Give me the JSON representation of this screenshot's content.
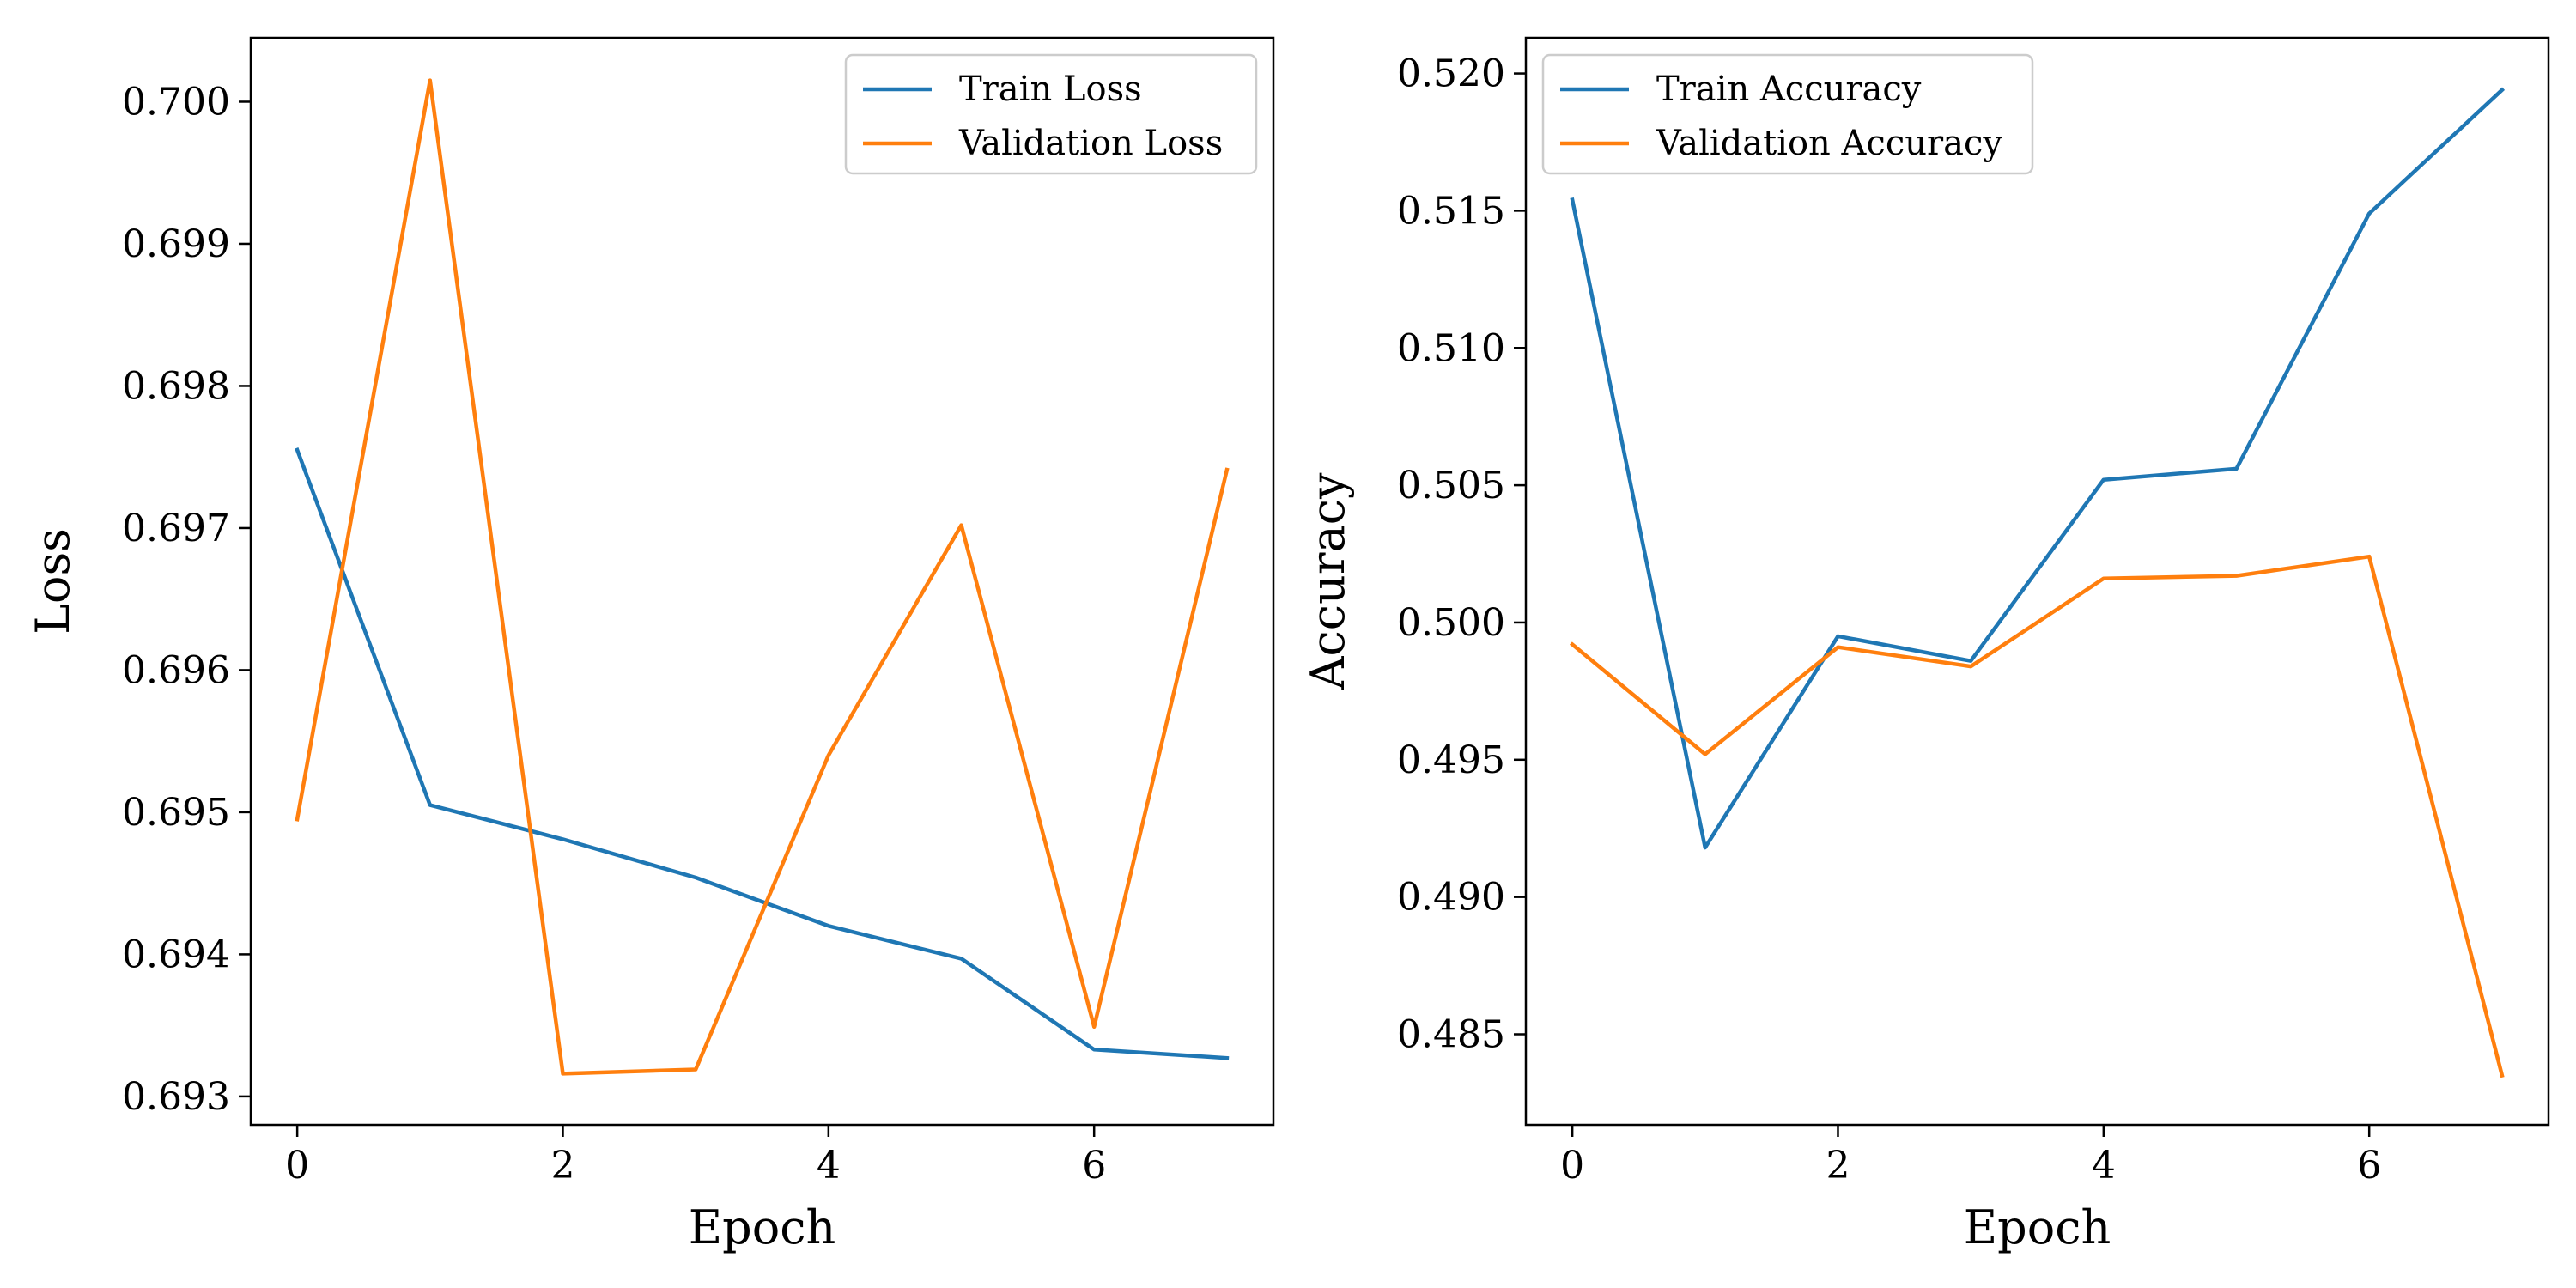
{
  "chart_data": [
    {
      "type": "line",
      "xlabel": "Epoch",
      "ylabel": "Loss",
      "x": [
        0,
        1,
        2,
        3,
        4,
        5,
        6,
        7
      ],
      "xlim": [
        -0.35,
        7.35
      ],
      "ylim": [
        0.6928,
        0.70045
      ],
      "xticks": [
        0,
        2,
        4,
        6
      ],
      "yticks": [
        0.693,
        0.694,
        0.695,
        0.696,
        0.697,
        0.698,
        0.699,
        0.7
      ],
      "ytick_labels": [
        "0.693",
        "0.694",
        "0.695",
        "0.696",
        "0.697",
        "0.698",
        "0.699",
        "0.700"
      ],
      "legend_position": "top-right",
      "series": [
        {
          "name": "Train Loss",
          "color": "#1f77b4",
          "values": [
            0.69755,
            0.69505,
            0.69481,
            0.69454,
            0.6942,
            0.69397,
            0.69333,
            0.69327
          ]
        },
        {
          "name": "Validation Loss",
          "color": "#ff7f0e",
          "values": [
            0.69495,
            0.70015,
            0.69316,
            0.69319,
            0.6954,
            0.69702,
            0.69349,
            0.69741
          ]
        }
      ]
    },
    {
      "type": "line",
      "xlabel": "Epoch",
      "ylabel": "Accuracy",
      "x": [
        0,
        1,
        2,
        3,
        4,
        5,
        6,
        7
      ],
      "xlim": [
        -0.35,
        7.35
      ],
      "ylim": [
        0.4817,
        0.5213
      ],
      "xticks": [
        0,
        2,
        4,
        6
      ],
      "yticks": [
        0.485,
        0.49,
        0.495,
        0.5,
        0.505,
        0.51,
        0.515,
        0.52
      ],
      "ytick_labels": [
        "0.485",
        "0.490",
        "0.495",
        "0.500",
        "0.505",
        "0.510",
        "0.515",
        "0.520"
      ],
      "legend_position": "top-left",
      "series": [
        {
          "name": "Train Accuracy",
          "color": "#1f77b4",
          "values": [
            0.5154,
            0.4918,
            0.4995,
            0.4986,
            0.5052,
            0.5056,
            0.5149,
            0.5194
          ]
        },
        {
          "name": "Validation Accuracy",
          "color": "#ff7f0e",
          "values": [
            0.4992,
            0.4952,
            0.4991,
            0.4984,
            0.5016,
            0.5017,
            0.5024,
            0.4835
          ]
        }
      ]
    }
  ]
}
